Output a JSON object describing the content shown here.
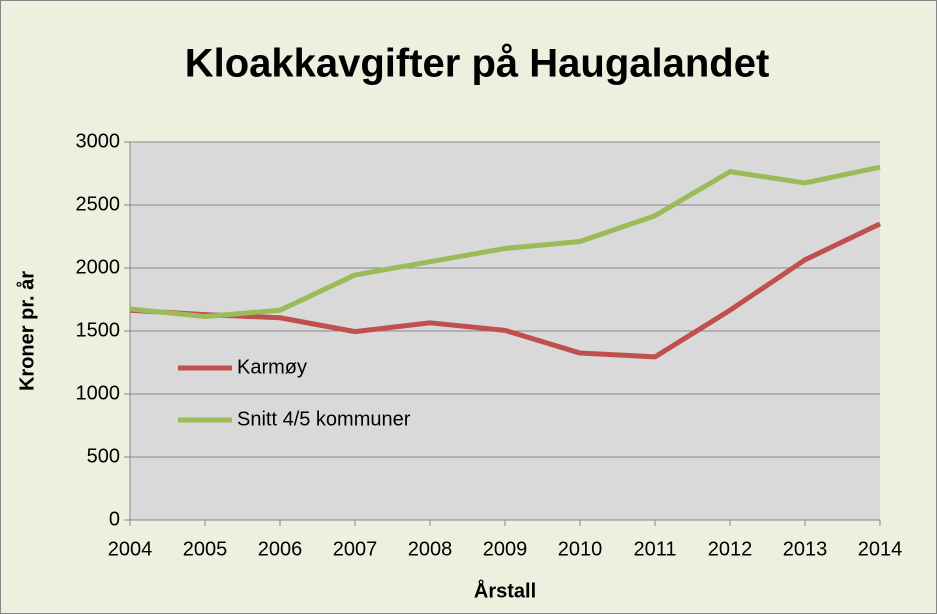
{
  "chart_data": {
    "type": "line",
    "title": "Kloakkavgifter på Haugalandet",
    "x_label": "Årstall",
    "y_label": "Kroner pr. år",
    "categories": [
      "2004",
      "2005",
      "2006",
      "2007",
      "2008",
      "2009",
      "2010",
      "2011",
      "2012",
      "2013",
      "2014"
    ],
    "series": [
      {
        "name": "Karmøy",
        "color": "#c0504d",
        "values": [
          1665,
          1630,
          1605,
          1495,
          1565,
          1505,
          1325,
          1295,
          1665,
          2065,
          2350
        ]
      },
      {
        "name": "Snitt 4/5 kommuner",
        "color": "#9bbb59",
        "values": [
          1675,
          1615,
          1665,
          1945,
          2050,
          2155,
          2210,
          2415,
          2765,
          2675,
          2800
        ]
      }
    ],
    "ylim": [
      0,
      3000
    ],
    "yticks": [
      0,
      500,
      1000,
      1500,
      2000,
      2500,
      3000
    ],
    "grid": true,
    "legend": "left"
  }
}
